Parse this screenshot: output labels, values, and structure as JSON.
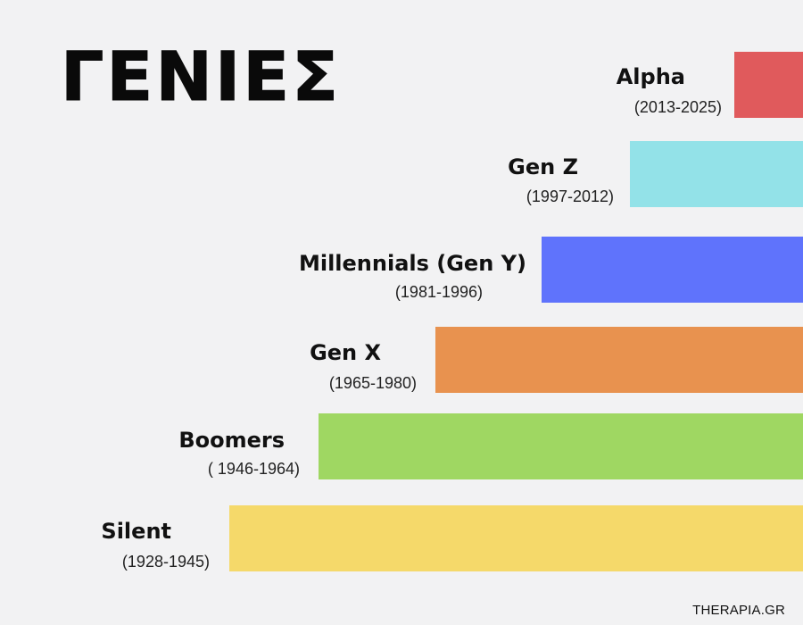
{
  "title": "ΓΕΝΙΕΣ",
  "generations": [
    {
      "name": "Alpha",
      "years": "(2013-2025)",
      "color": "#e05a5c"
    },
    {
      "name": "Gen Z",
      "years": "(1997-2012)",
      "color": "#93e2e8"
    },
    {
      "name": "Millennials (Gen Y)",
      "years": "(1981-1996)",
      "color": "#5f73fc"
    },
    {
      "name": "Gen X",
      "years": "(1965-1980)",
      "color": "#e8924f"
    },
    {
      "name": "Boomers",
      "years": "( 1946-1964)",
      "color": "#9fd762"
    },
    {
      "name": "Silent",
      "years": "(1928-1945)",
      "color": "#f5d96a"
    }
  ],
  "brand": "THERAPIA.GR"
}
